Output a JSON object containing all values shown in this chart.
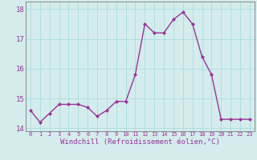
{
  "x": [
    0,
    1,
    2,
    3,
    4,
    5,
    6,
    7,
    8,
    9,
    10,
    11,
    12,
    13,
    14,
    15,
    16,
    17,
    18,
    19,
    20,
    21,
    22,
    23
  ],
  "y": [
    14.6,
    14.2,
    14.5,
    14.8,
    14.8,
    14.8,
    14.7,
    14.4,
    14.6,
    14.9,
    14.9,
    15.8,
    17.5,
    17.2,
    17.2,
    17.65,
    17.9,
    17.5,
    16.4,
    15.8,
    14.3,
    14.3,
    14.3,
    14.3
  ],
  "line_color": "#993399",
  "marker": "D",
  "marker_size": 2.0,
  "linewidth": 1.0,
  "xlabel": "Windchill (Refroidissement éolien,°C)",
  "xlabel_fontsize": 6.5,
  "ylim": [
    13.9,
    18.25
  ],
  "xlim": [
    -0.5,
    23.5
  ],
  "yticks": [
    14,
    15,
    16,
    17,
    18
  ],
  "xticks": [
    0,
    1,
    2,
    3,
    4,
    5,
    6,
    7,
    8,
    9,
    10,
    11,
    12,
    13,
    14,
    15,
    16,
    17,
    18,
    19,
    20,
    21,
    22,
    23
  ],
  "xtick_fontsize": 5.0,
  "ytick_fontsize": 6.5,
  "grid_color": "#aadddd",
  "bg_color": "#d4ecec",
  "spine_color": "#888888",
  "font_color": "#993399"
}
